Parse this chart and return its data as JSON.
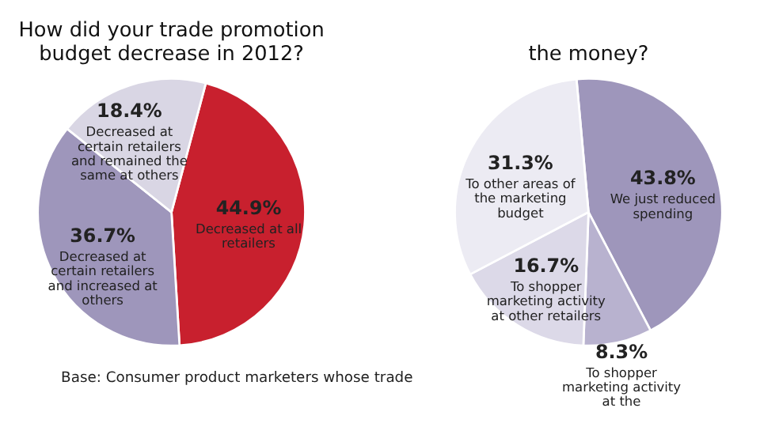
{
  "chart_data": [
    {
      "type": "pie",
      "title": "How did your trade promotion budget decrease in 2012?",
      "categories": [
        "Decreased at all retailers",
        "Decreased at certain retailers and increased at others",
        "Decreased at certain retailers and remained the same at others"
      ],
      "values": [
        44.9,
        36.7,
        18.4
      ],
      "value_labels": [
        "44.9%",
        "36.7%",
        "18.4%"
      ],
      "colors": [
        "#c8202e",
        "#9e96bb",
        "#d9d6e4"
      ],
      "annotations": [
        "Base: Consumer product marketers whose trade"
      ]
    },
    {
      "type": "pie",
      "title": "the money?",
      "categories": [
        "We just reduced spending",
        "To shopper marketing activity at the",
        "To shopper marketing activity at other retailers",
        "To other areas of the marketing budget"
      ],
      "values": [
        43.8,
        8.3,
        16.7,
        31.3
      ],
      "value_labels": [
        "43.8%",
        "8.3%",
        "16.7%",
        "31.3%"
      ],
      "colors": [
        "#9e96bb",
        "#b8b2cf",
        "#dcd9e8",
        "#ecebf3"
      ]
    }
  ]
}
